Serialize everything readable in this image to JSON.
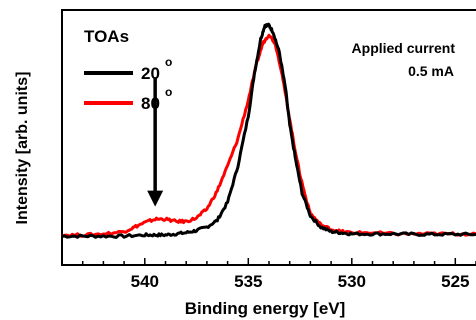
{
  "chart_data": {
    "type": "line",
    "xlabel": "Binding energy [eV]",
    "ylabel": "Intensity [arb. units]",
    "x_reversed": true,
    "xlim": [
      544,
      524
    ],
    "ylim": [
      0,
      1.05
    ],
    "x_ticks": [
      540,
      535,
      530,
      525
    ],
    "x_tick_labels": [
      "540",
      "535",
      "530",
      "525"
    ],
    "y_tick_labels": false,
    "legend": {
      "title": "TOAs",
      "placement": "top-left",
      "entries": [
        {
          "label": "20",
          "superscript": "o",
          "color": "#000000"
        },
        {
          "label": "80",
          "superscript": "o",
          "color": "#ff0000"
        }
      ]
    },
    "annotation": {
      "line1": "Applied current",
      "line2": "0.5 mA"
    },
    "arrow": {
      "x": 539.5,
      "y_from": 0.77,
      "y_to": 0.2
    },
    "series": [
      {
        "color": "#000000",
        "x": [
          544,
          543,
          542,
          541,
          540,
          539.5,
          539,
          538.5,
          538,
          537.5,
          537,
          536.5,
          536,
          535.5,
          535,
          534.7,
          534.4,
          534.2,
          534,
          533.8,
          533.5,
          533.2,
          533,
          532.7,
          532.4,
          532,
          531.5,
          531,
          530.5,
          530,
          529,
          528,
          527,
          526,
          525,
          524
        ],
        "y": [
          0.07,
          0.07,
          0.07,
          0.07,
          0.075,
          0.075,
          0.075,
          0.08,
          0.085,
          0.095,
          0.11,
          0.14,
          0.22,
          0.38,
          0.6,
          0.79,
          0.94,
          1.0,
          1.0,
          0.97,
          0.88,
          0.72,
          0.56,
          0.4,
          0.26,
          0.16,
          0.11,
          0.09,
          0.085,
          0.08,
          0.08,
          0.08,
          0.078,
          0.078,
          0.078,
          0.078
        ]
      },
      {
        "color": "#ff0000",
        "x": [
          544,
          543,
          542,
          541,
          540.5,
          540,
          539.5,
          539,
          538.5,
          538,
          537.5,
          537,
          536.5,
          536,
          535.5,
          535,
          534.6,
          534.3,
          534,
          533.7,
          533.4,
          533.1,
          532.8,
          532.5,
          532.2,
          532,
          531.5,
          531,
          530.5,
          530,
          529,
          528,
          527,
          526,
          525,
          524
        ],
        "y": [
          0.075,
          0.075,
          0.08,
          0.09,
          0.11,
          0.13,
          0.145,
          0.145,
          0.135,
          0.135,
          0.15,
          0.19,
          0.27,
          0.38,
          0.5,
          0.67,
          0.83,
          0.92,
          0.96,
          0.92,
          0.8,
          0.64,
          0.48,
          0.34,
          0.23,
          0.17,
          0.12,
          0.1,
          0.09,
          0.085,
          0.085,
          0.08,
          0.08,
          0.08,
          0.08,
          0.08
        ]
      }
    ]
  }
}
